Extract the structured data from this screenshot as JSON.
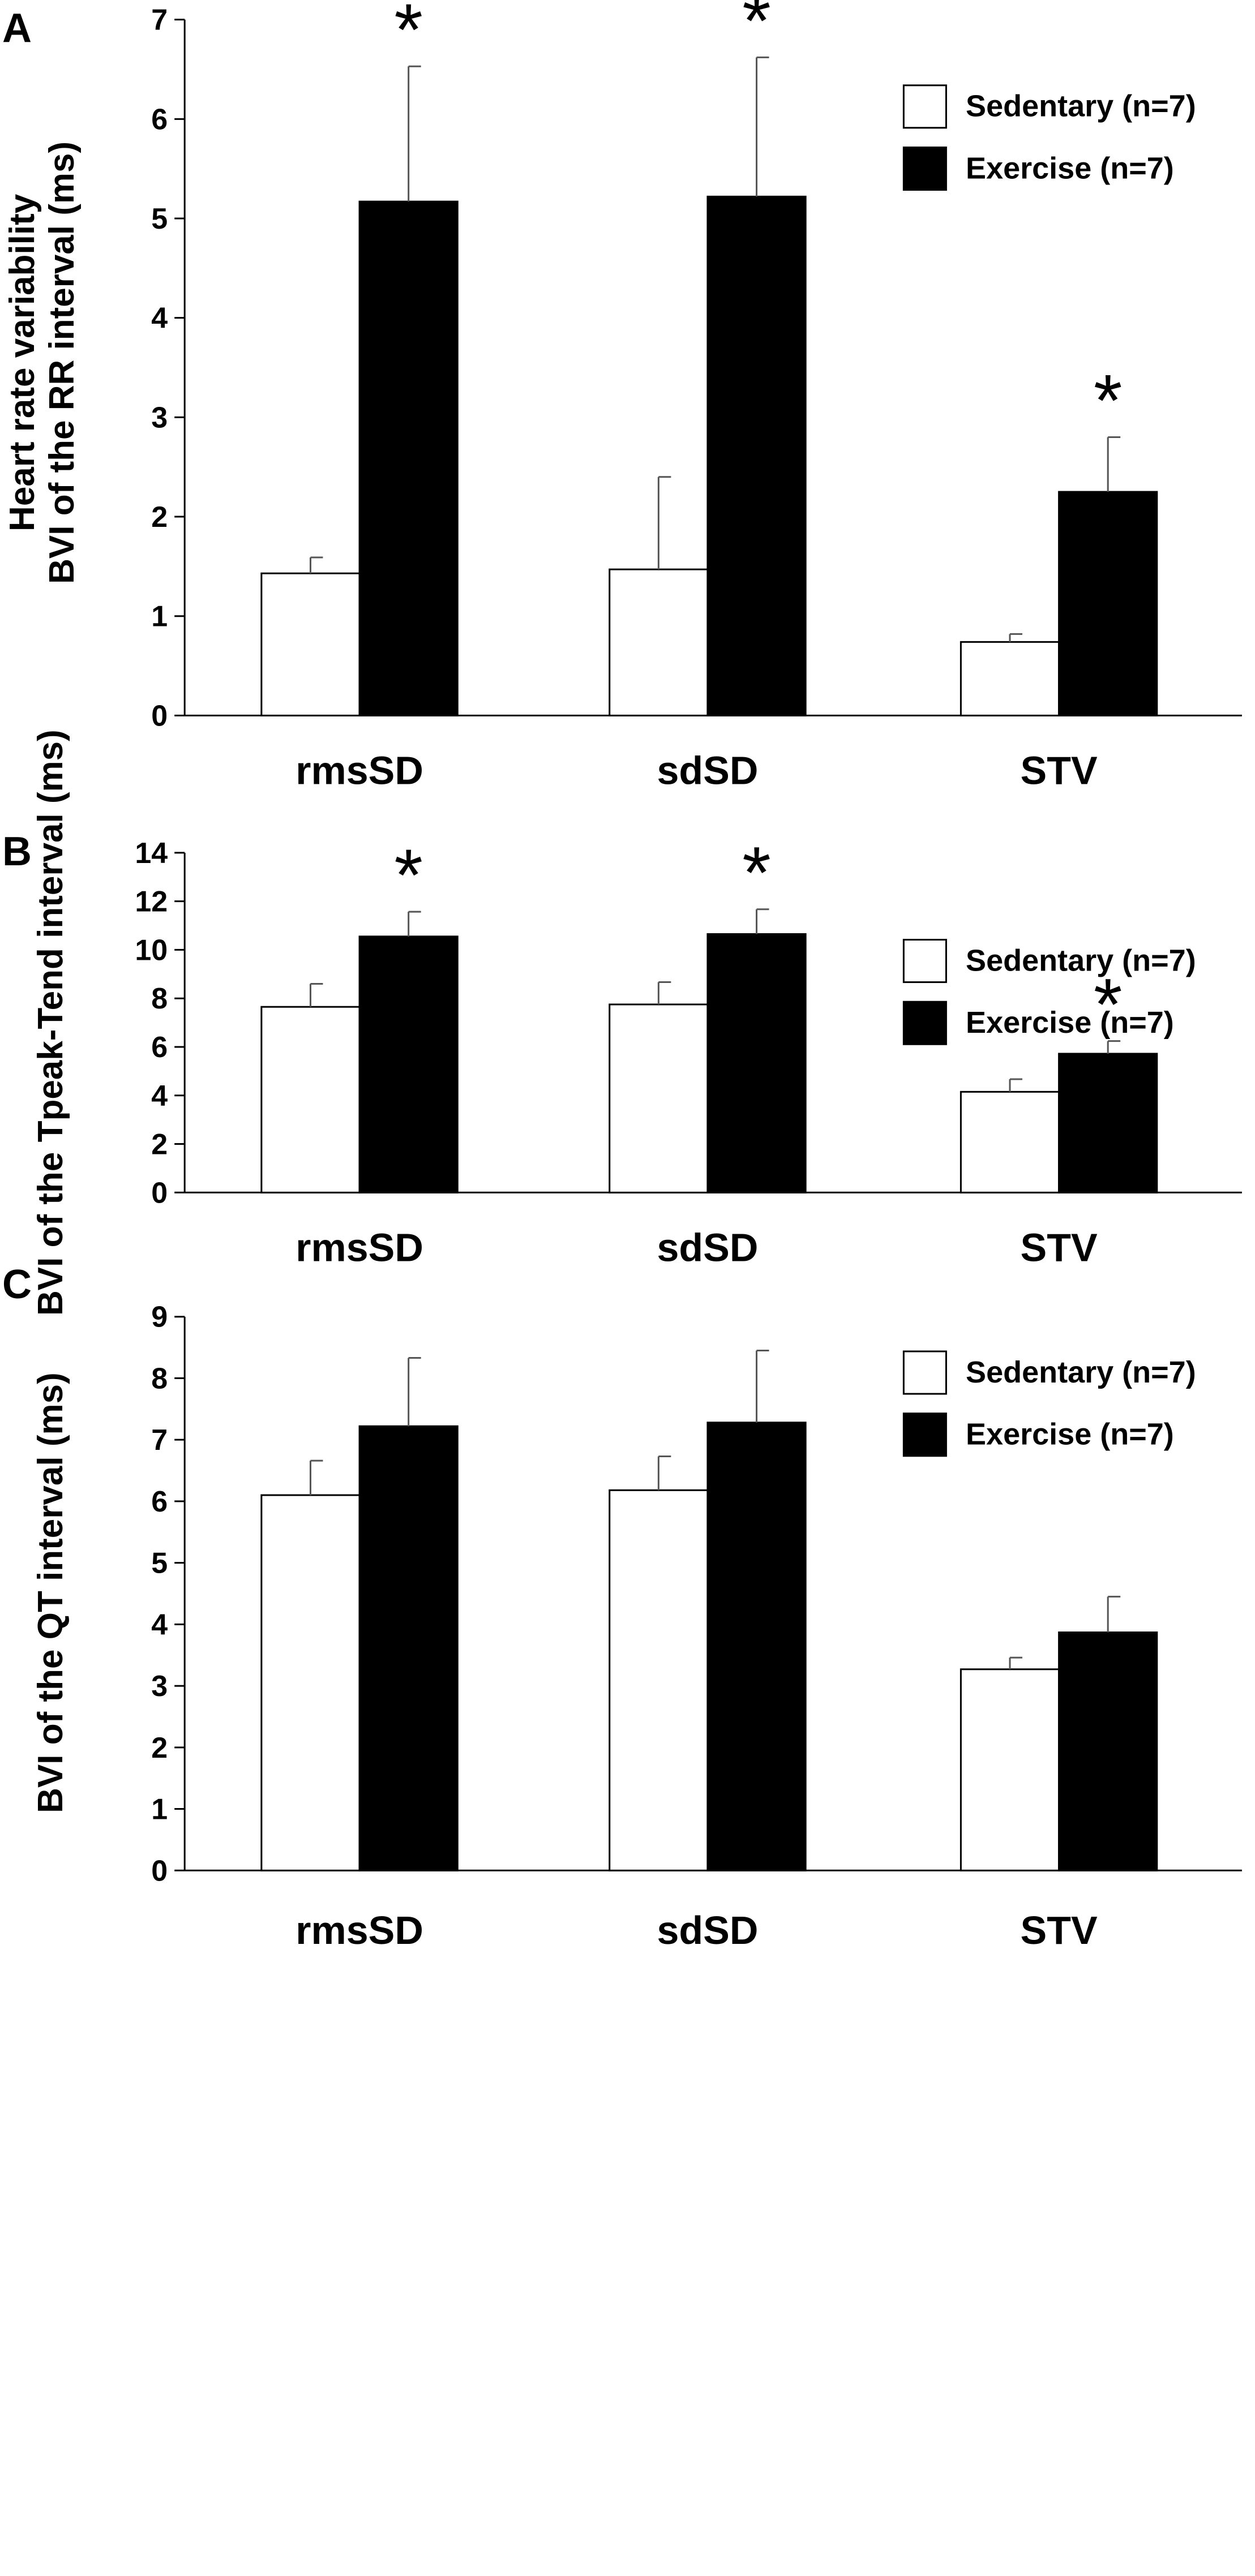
{
  "chart_data": [
    {
      "type": "bar",
      "panel_label": "A",
      "categories": [
        "rmsSD",
        "sdSD",
        "STV"
      ],
      "ylabel_lines": [
        "Heart rate variability",
        "BVI of the RR interval (ms)"
      ],
      "ylim": [
        0,
        7
      ],
      "yticks": [
        0,
        1,
        2,
        3,
        4,
        5,
        6,
        7
      ],
      "legend": {
        "position": "top-right",
        "entries": [
          "Sedentary (n=7)",
          "Exercise (n=7)"
        ]
      },
      "series": [
        {
          "name": "Sedentary (n=7)",
          "color": "#ffffff",
          "values": [
            1.43,
            1.47,
            0.74
          ],
          "errors": [
            0.16,
            0.93,
            0.08
          ],
          "significance": [
            "",
            "",
            ""
          ]
        },
        {
          "name": "Exercise (n=7)",
          "color": "#000000",
          "values": [
            5.17,
            5.22,
            2.25
          ],
          "errors": [
            1.36,
            1.4,
            0.55
          ],
          "significance": [
            "*",
            "*",
            "*"
          ]
        }
      ]
    },
    {
      "type": "bar",
      "panel_label": "B",
      "categories": [
        "rmsSD",
        "sdSD",
        "STV"
      ],
      "ylabel_lines": [
        "BVI of the Tpeak-Tend interval (ms)"
      ],
      "ylim": [
        0,
        14
      ],
      "yticks": [
        0,
        2,
        4,
        6,
        8,
        10,
        12,
        14
      ],
      "legend": {
        "position": "top-right",
        "entries": [
          "Sedentary (n=7)",
          "Exercise (n=7)"
        ]
      },
      "series": [
        {
          "name": "Sedentary (n=7)",
          "color": "#ffffff",
          "values": [
            7.65,
            7.75,
            4.15
          ],
          "errors": [
            0.95,
            0.92,
            0.52
          ],
          "significance": [
            "",
            "",
            ""
          ]
        },
        {
          "name": "Exercise (n=7)",
          "color": "#000000",
          "values": [
            10.55,
            10.65,
            5.72
          ],
          "errors": [
            1.02,
            1.02,
            0.52
          ],
          "significance": [
            "*",
            "*",
            "*"
          ]
        }
      ]
    },
    {
      "type": "bar",
      "panel_label": "C",
      "categories": [
        "rmsSD",
        "sdSD",
        "STV"
      ],
      "ylabel_lines": [
        "BVI of the QT interval (ms)"
      ],
      "ylim": [
        0,
        9
      ],
      "yticks": [
        0,
        1,
        2,
        3,
        4,
        5,
        6,
        7,
        8,
        9
      ],
      "legend": {
        "position": "top-right",
        "entries": [
          "Sedentary (n=7)",
          "Exercise (n=7)"
        ]
      },
      "series": [
        {
          "name": "Sedentary (n=7)",
          "color": "#ffffff",
          "values": [
            6.1,
            6.18,
            3.27
          ],
          "errors": [
            0.56,
            0.55,
            0.19
          ],
          "significance": [
            "",
            "",
            ""
          ]
        },
        {
          "name": "Exercise (n=7)",
          "color": "#000000",
          "values": [
            7.22,
            7.28,
            3.87
          ],
          "errors": [
            1.11,
            1.17,
            0.58
          ],
          "significance": [
            "",
            "",
            ""
          ]
        }
      ]
    }
  ]
}
